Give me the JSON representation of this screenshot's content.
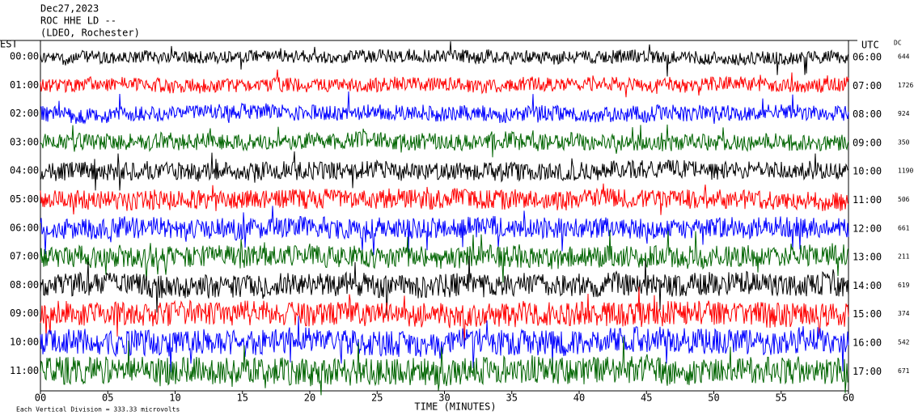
{
  "chart_data": {
    "type": "helicorder",
    "title_lines": [
      "Dec27,2023",
      "ROC HHE LD --",
      "(LDEO, Rochester)"
    ],
    "left_axis_label": "EST",
    "right_axis_label": "UTC",
    "dc_label": "DC",
    "rows": [
      {
        "est": "00:00",
        "utc": "06:00",
        "dc": 644,
        "color": "#000000"
      },
      {
        "est": "01:00",
        "utc": "07:00",
        "dc": 1726,
        "color": "#ff0000"
      },
      {
        "est": "02:00",
        "utc": "08:00",
        "dc": 924,
        "color": "#0000ff"
      },
      {
        "est": "03:00",
        "utc": "09:00",
        "dc": 350,
        "color": "#006400"
      },
      {
        "est": "04:00",
        "utc": "10:00",
        "dc": 1190,
        "color": "#000000"
      },
      {
        "est": "05:00",
        "utc": "11:00",
        "dc": 506,
        "color": "#ff0000"
      },
      {
        "est": "06:00",
        "utc": "12:00",
        "dc": 661,
        "color": "#0000ff"
      },
      {
        "est": "07:00",
        "utc": "13:00",
        "dc": 211,
        "color": "#006400"
      },
      {
        "est": "08:00",
        "utc": "14:00",
        "dc": 619,
        "color": "#000000"
      },
      {
        "est": "09:00",
        "utc": "15:00",
        "dc": 374,
        "color": "#ff0000"
      },
      {
        "est": "10:00",
        "utc": "16:00",
        "dc": 542,
        "color": "#0000ff"
      },
      {
        "est": "11:00",
        "utc": "17:00",
        "dc": 671,
        "color": "#006400"
      }
    ],
    "xlim": [
      0,
      60
    ],
    "xticks": [
      {
        "value": 0,
        "label": "00"
      },
      {
        "value": 5,
        "label": "05"
      },
      10,
      15,
      20,
      25,
      30,
      35,
      40,
      45,
      50,
      55,
      60
    ],
    "x_label": "TIME (MINUTES)",
    "footer": "Each Vertical Division =  333.33 microvolts"
  }
}
